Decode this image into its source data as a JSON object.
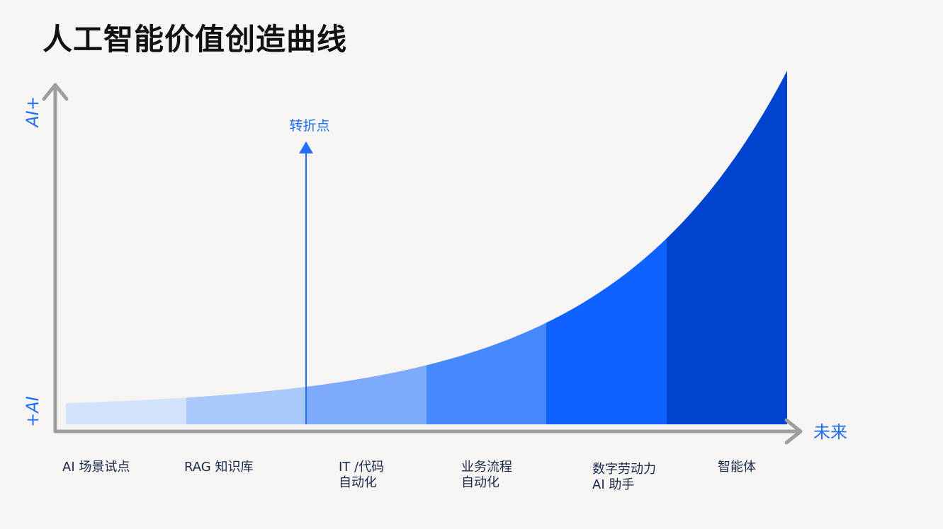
{
  "title": "人工智能价值创造曲线",
  "axes": {
    "y_top_label": "AI+",
    "y_bottom_label": "+AI",
    "x_end_label": "未来"
  },
  "turning_point": {
    "label": "转折点"
  },
  "stages": [
    {
      "lines": [
        "AI 场景试点"
      ],
      "color": "#d4e3fc"
    },
    {
      "lines": [
        "RAG 知识库"
      ],
      "color": "#a9c9fd"
    },
    {
      "lines": [
        "IT /代码",
        "自动化"
      ],
      "color": "#7eaafc"
    },
    {
      "lines": [
        "业务流程",
        "自动化"
      ],
      "color": "#4589fc"
    },
    {
      "lines": [
        "数字劳动力",
        "AI 助手"
      ],
      "color": "#0f62fe"
    },
    {
      "lines": [
        "智能体"
      ],
      "color": "#0043ce"
    }
  ],
  "colors": {
    "axis": "#9e9e9e",
    "accent": "#1f6ef5",
    "title": "#111111",
    "category_text": "#1c2a4a"
  }
}
